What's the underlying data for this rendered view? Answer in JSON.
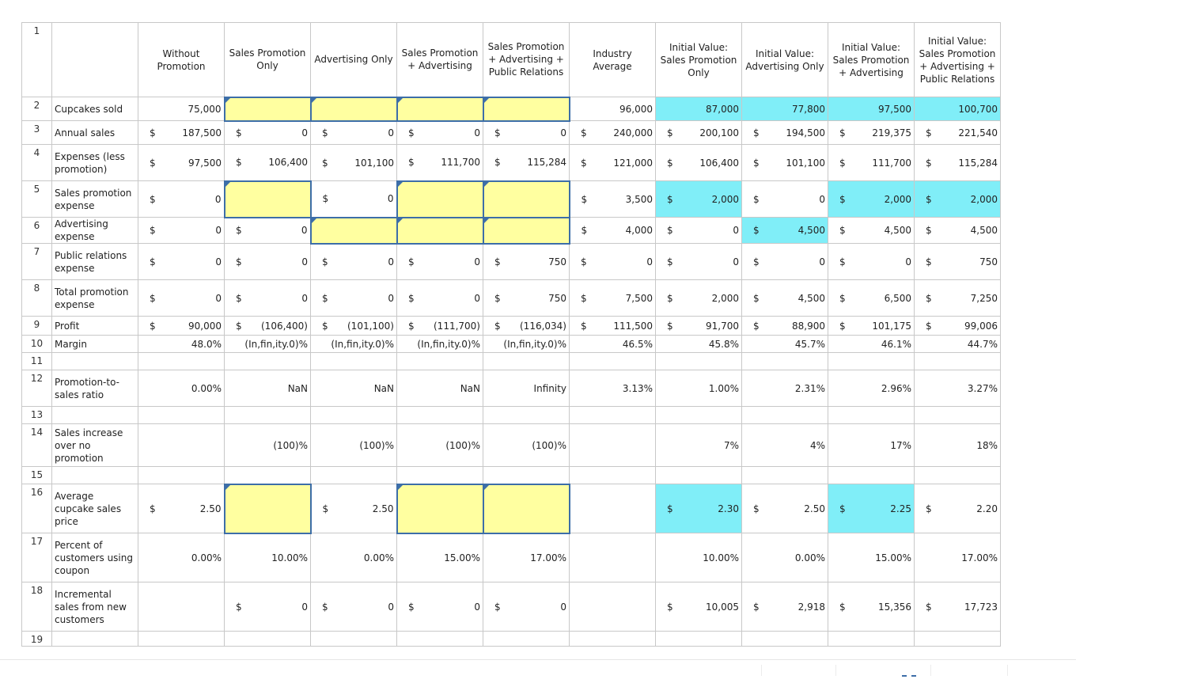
{
  "colors": {
    "input_fill": "#ffffa0",
    "input_border": "#3d6ea8",
    "initial_value_fill": "#80eef8"
  },
  "headers": [
    "",
    "Without Promotion",
    "Sales Promotion Only",
    "Advertising Only",
    "Sales Promotion + Advertising",
    "Sales Promotion + Advertising + Public Relations",
    "Industry Average",
    "Initial Value: Sales Promotion Only",
    "Initial Value: Advertising Only",
    "Initial Value: Sales Promotion + Advertising",
    "Initial Value: Sales Promotion + Advertising + Public Relations"
  ],
  "rows": [
    {
      "n": "1",
      "label": "",
      "cells": []
    },
    {
      "n": "2",
      "label": "Cupcakes sold",
      "cells": [
        [
          "",
          "75,000"
        ],
        [
          "",
          ""
        ],
        [
          "",
          ""
        ],
        [
          "",
          ""
        ],
        [
          "",
          ""
        ],
        [
          "",
          "96,000"
        ],
        [
          "",
          "87,000"
        ],
        [
          "",
          "77,800"
        ],
        [
          "",
          "97,500"
        ],
        [
          "",
          "100,700"
        ]
      ]
    },
    {
      "n": "3",
      "label": "Annual sales",
      "cells": [
        [
          "$",
          "187,500"
        ],
        [
          "$",
          "0"
        ],
        [
          "$",
          "0"
        ],
        [
          "$",
          "0"
        ],
        [
          "$",
          "0"
        ],
        [
          "$",
          "240,000"
        ],
        [
          "$",
          "200,100"
        ],
        [
          "$",
          "194,500"
        ],
        [
          "$",
          "219,375"
        ],
        [
          "$",
          "221,540"
        ]
      ]
    },
    {
      "n": "4",
      "label": "Expenses (less promotion)",
      "cells": [
        [
          "$",
          "97,500"
        ],
        [
          "$",
          "106,400"
        ],
        [
          "$",
          "101,100"
        ],
        [
          "$",
          "111,700"
        ],
        [
          "$",
          "115,284"
        ],
        [
          "$",
          "121,000"
        ],
        [
          "$",
          "106,400"
        ],
        [
          "$",
          "101,100"
        ],
        [
          "$",
          "111,700"
        ],
        [
          "$",
          "115,284"
        ]
      ]
    },
    {
      "n": "5",
      "label": "Sales promotion expense",
      "cells": [
        [
          "$",
          "0"
        ],
        [
          "",
          ""
        ],
        [
          "$",
          "0"
        ],
        [
          "",
          ""
        ],
        [
          "",
          ""
        ],
        [
          "$",
          "3,500"
        ],
        [
          "$",
          "2,000"
        ],
        [
          "$",
          "0"
        ],
        [
          "$",
          "2,000"
        ],
        [
          "$",
          "2,000"
        ]
      ]
    },
    {
      "n": "6",
      "label": "Advertising expense",
      "cells": [
        [
          "$",
          "0"
        ],
        [
          "$",
          "0"
        ],
        [
          "",
          ""
        ],
        [
          "",
          ""
        ],
        [
          "",
          ""
        ],
        [
          "$",
          "4,000"
        ],
        [
          "$",
          "0"
        ],
        [
          "$",
          "4,500"
        ],
        [
          "$",
          "4,500"
        ],
        [
          "$",
          "4,500"
        ]
      ]
    },
    {
      "n": "7",
      "label": "Public relations expense",
      "cells": [
        [
          "$",
          "0"
        ],
        [
          "$",
          "0"
        ],
        [
          "$",
          "0"
        ],
        [
          "$",
          "0"
        ],
        [
          "$",
          "750"
        ],
        [
          "$",
          "0"
        ],
        [
          "$",
          "0"
        ],
        [
          "$",
          "0"
        ],
        [
          "$",
          "0"
        ],
        [
          "$",
          "750"
        ]
      ]
    },
    {
      "n": "8",
      "label": "Total promotion expense",
      "cells": [
        [
          "$",
          "0"
        ],
        [
          "$",
          "0"
        ],
        [
          "$",
          "0"
        ],
        [
          "$",
          "0"
        ],
        [
          "$",
          "750"
        ],
        [
          "$",
          "7,500"
        ],
        [
          "$",
          "2,000"
        ],
        [
          "$",
          "4,500"
        ],
        [
          "$",
          "6,500"
        ],
        [
          "$",
          "7,250"
        ]
      ]
    },
    {
      "n": "9",
      "label": "Profit",
      "cells": [
        [
          "$",
          "90,000"
        ],
        [
          "$",
          "(106,400)"
        ],
        [
          "$",
          "(101,100)"
        ],
        [
          "$",
          "(111,700)"
        ],
        [
          "$",
          "(116,034)"
        ],
        [
          "$",
          "111,500"
        ],
        [
          "$",
          "91,700"
        ],
        [
          "$",
          "88,900"
        ],
        [
          "$",
          "101,175"
        ],
        [
          "$",
          "99,006"
        ]
      ]
    },
    {
      "n": "10",
      "label": "Margin",
      "cells": [
        [
          "",
          "48.0%"
        ],
        [
          "",
          "(In,fin,ity.0)%"
        ],
        [
          "",
          "(In,fin,ity.0)%"
        ],
        [
          "",
          "(In,fin,ity.0)%"
        ],
        [
          "",
          "(In,fin,ity.0)%"
        ],
        [
          "",
          "46.5%"
        ],
        [
          "",
          "45.8%"
        ],
        [
          "",
          "45.7%"
        ],
        [
          "",
          "46.1%"
        ],
        [
          "",
          "44.7%"
        ]
      ]
    },
    {
      "n": "11",
      "label": "",
      "cells": []
    },
    {
      "n": "12",
      "label": "Promotion-to-sales ratio",
      "cells": [
        [
          "",
          "0.00%"
        ],
        [
          "",
          "NaN"
        ],
        [
          "",
          "NaN"
        ],
        [
          "",
          "NaN"
        ],
        [
          "",
          "Infinity"
        ],
        [
          "",
          "3.13%"
        ],
        [
          "",
          "1.00%"
        ],
        [
          "",
          "2.31%"
        ],
        [
          "",
          "2.96%"
        ],
        [
          "",
          "3.27%"
        ]
      ]
    },
    {
      "n": "13",
      "label": "",
      "cells": []
    },
    {
      "n": "14",
      "label": "Sales increase over no promotion",
      "cells": [
        [
          "",
          ""
        ],
        [
          "",
          "(100)%"
        ],
        [
          "",
          "(100)%"
        ],
        [
          "",
          "(100)%"
        ],
        [
          "",
          "(100)%"
        ],
        [
          "",
          ""
        ],
        [
          "",
          "7%"
        ],
        [
          "",
          "4%"
        ],
        [
          "",
          "17%"
        ],
        [
          "",
          "18%"
        ]
      ]
    },
    {
      "n": "15",
      "label": "",
      "cells": []
    },
    {
      "n": "16",
      "label": "Average cupcake sales price",
      "cells": [
        [
          "$",
          "2.50"
        ],
        [
          "",
          ""
        ],
        [
          "$",
          "2.50"
        ],
        [
          "",
          ""
        ],
        [
          "",
          ""
        ],
        [
          "",
          ""
        ],
        [
          "$",
          "2.30"
        ],
        [
          "$",
          "2.50"
        ],
        [
          "$",
          "2.25"
        ],
        [
          "$",
          "2.20"
        ]
      ]
    },
    {
      "n": "17",
      "label": "Percent of customers using coupon",
      "cells": [
        [
          "",
          "0.00%"
        ],
        [
          "",
          "10.00%"
        ],
        [
          "",
          "0.00%"
        ],
        [
          "",
          "15.00%"
        ],
        [
          "",
          "17.00%"
        ],
        [
          "",
          ""
        ],
        [
          "",
          "10.00%"
        ],
        [
          "",
          "0.00%"
        ],
        [
          "",
          "15.00%"
        ],
        [
          "",
          "17.00%"
        ]
      ]
    },
    {
      "n": "18",
      "label": "Incremental sales from new customers",
      "cells": [
        [
          "",
          ""
        ],
        [
          "$",
          "0"
        ],
        [
          "$",
          "0"
        ],
        [
          "$",
          "0"
        ],
        [
          "$",
          "0"
        ],
        [
          "",
          ""
        ],
        [
          "$",
          "10,005"
        ],
        [
          "$",
          "2,918"
        ],
        [
          "$",
          "15,356"
        ],
        [
          "$",
          "17,723"
        ]
      ]
    },
    {
      "n": "19",
      "label": "",
      "cells": []
    }
  ]
}
